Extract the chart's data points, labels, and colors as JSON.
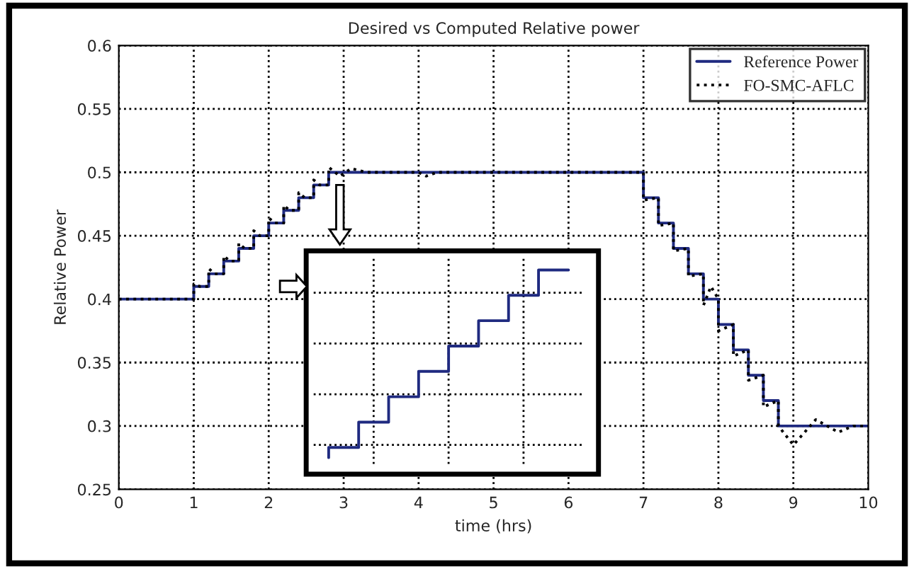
{
  "chart_data": {
    "type": "line",
    "title": "Desired vs Computed Relative power",
    "xlabel": "time (hrs)",
    "ylabel": "Relative Power",
    "xlim": [
      0,
      10
    ],
    "ylim": [
      0.25,
      0.6
    ],
    "xticks": [
      0,
      1,
      2,
      3,
      4,
      5,
      6,
      7,
      8,
      9,
      10
    ],
    "yticks": [
      0.25,
      0.3,
      0.35,
      0.4,
      0.45,
      0.5,
      0.55,
      0.6
    ],
    "grid": true,
    "legend": "top right",
    "series": [
      {
        "name": "Reference Power",
        "type": "step",
        "color": "#1f2a80",
        "line_style": "solid",
        "x": [
          0,
          1,
          1.2,
          1.4,
          1.6,
          1.8,
          2.0,
          2.2,
          2.4,
          2.6,
          2.8,
          7.0,
          7.2,
          7.4,
          7.6,
          7.8,
          8.0,
          8.2,
          8.4,
          8.6,
          8.8,
          10
        ],
        "values": [
          0.4,
          0.41,
          0.42,
          0.43,
          0.44,
          0.45,
          0.46,
          0.47,
          0.48,
          0.49,
          0.5,
          0.48,
          0.46,
          0.44,
          0.42,
          0.4,
          0.38,
          0.36,
          0.34,
          0.32,
          0.3,
          0.3
        ]
      },
      {
        "name": "FO-SMC-AFLC",
        "color": "#000000",
        "line_style": "dotted",
        "x": [
          0,
          1,
          1,
          1.08,
          1.2,
          1.2,
          1.28,
          1.4,
          1.4,
          1.48,
          1.6,
          1.6,
          1.68,
          1.8,
          1.8,
          1.88,
          2.0,
          2.0,
          2.08,
          2.2,
          2.2,
          2.28,
          2.4,
          2.4,
          2.48,
          2.6,
          2.6,
          2.68,
          2.8,
          2.8,
          2.95,
          3.1,
          3.3,
          4.0,
          4.1,
          4.25,
          7.0,
          7.0,
          7.2,
          7.2,
          7.4,
          7.4,
          7.6,
          7.6,
          7.8,
          7.8,
          7.9,
          8.0,
          8.0,
          8.2,
          8.2,
          8.4,
          8.4,
          8.6,
          8.6,
          8.8,
          8.8,
          9.0,
          9.3,
          9.6,
          9.8,
          10
        ],
        "values": [
          0.4,
          0.4,
          0.412,
          0.41,
          0.41,
          0.424,
          0.42,
          0.42,
          0.434,
          0.43,
          0.43,
          0.444,
          0.44,
          0.44,
          0.454,
          0.45,
          0.45,
          0.464,
          0.46,
          0.46,
          0.474,
          0.47,
          0.47,
          0.484,
          0.48,
          0.48,
          0.494,
          0.49,
          0.49,
          0.504,
          0.497,
          0.503,
          0.5,
          0.5,
          0.497,
          0.5,
          0.5,
          0.478,
          0.48,
          0.458,
          0.46,
          0.438,
          0.44,
          0.418,
          0.42,
          0.395,
          0.41,
          0.4,
          0.375,
          0.38,
          0.355,
          0.36,
          0.336,
          0.34,
          0.315,
          0.32,
          0.3,
          0.285,
          0.305,
          0.295,
          0.3,
          0.3
        ]
      }
    ]
  }
}
